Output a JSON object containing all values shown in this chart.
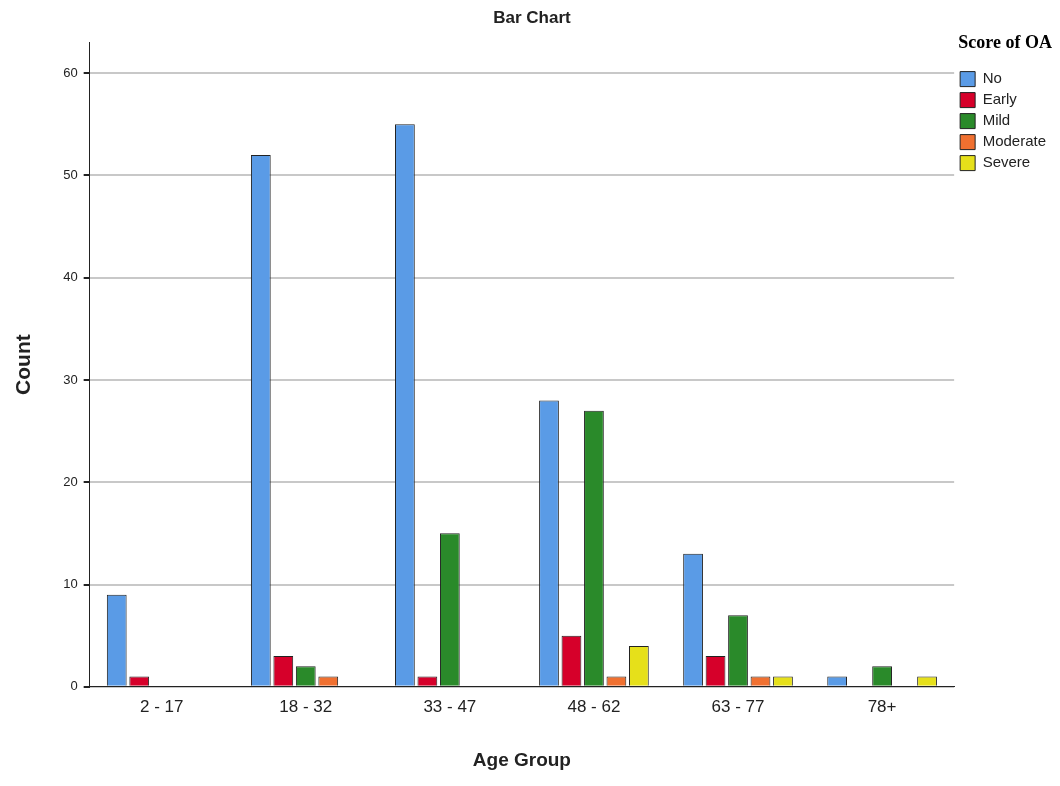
{
  "chart_data": {
    "type": "bar",
    "title": "Bar Chart",
    "xlabel": "Age Group",
    "ylabel": "Count",
    "legend_title": "Score of OA",
    "categories": [
      "2 - 17",
      "18 - 32",
      "33 - 47",
      "48 - 62",
      "63 - 77",
      "78+"
    ],
    "series": [
      {
        "name": "No",
        "color": "#5a9be6",
        "values": [
          9,
          52,
          55,
          28,
          13,
          1
        ]
      },
      {
        "name": "Early",
        "color": "#d6002a",
        "values": [
          1,
          3,
          1,
          5,
          3,
          null
        ]
      },
      {
        "name": "Mild",
        "color": "#2a8a2a",
        "values": [
          null,
          2,
          15,
          27,
          7,
          2
        ]
      },
      {
        "name": "Moderate",
        "color": "#f07030",
        "values": [
          null,
          1,
          null,
          1,
          1,
          null
        ]
      },
      {
        "name": "Severe",
        "color": "#e6e01a",
        "values": [
          null,
          null,
          null,
          4,
          1,
          1
        ]
      }
    ],
    "ylim": [
      0,
      63
    ],
    "yticks": [
      0,
      10,
      20,
      30,
      40,
      50,
      60
    ],
    "grid": "y",
    "legend": "top right"
  }
}
